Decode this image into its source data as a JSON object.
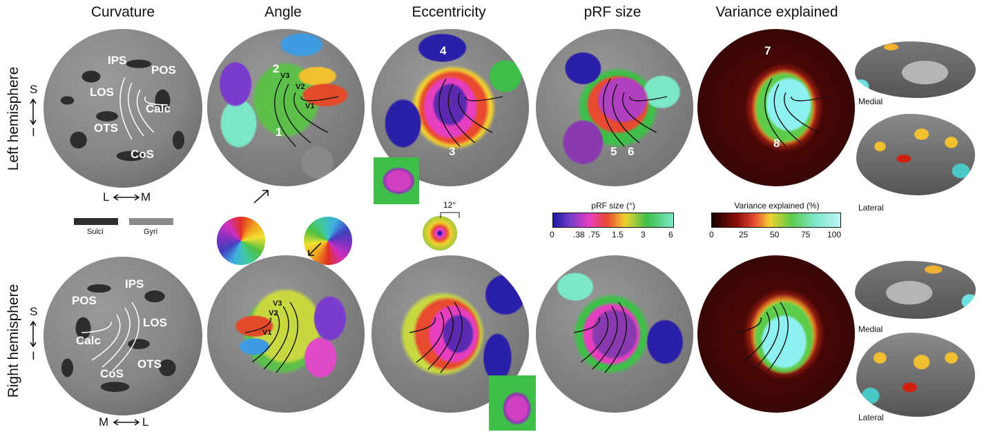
{
  "columns": {
    "curvature": "Curvature",
    "angle": "Angle",
    "eccentricity": "Eccentricity",
    "prf_size": "pRF size",
    "variance": "Variance explained"
  },
  "rows": {
    "left": "Left hemisphere",
    "right": "Right hemisphere"
  },
  "curvature_left": {
    "regions": [
      "IPS",
      "POS",
      "LOS",
      "Calc",
      "OTS",
      "CoS"
    ],
    "si": [
      "S",
      "I"
    ],
    "lm": [
      "L",
      "M"
    ]
  },
  "curvature_right": {
    "regions": [
      "IPS",
      "POS",
      "LOS",
      "Calc",
      "CoS",
      "OTS"
    ],
    "si": [
      "S",
      "I"
    ],
    "ml": [
      "M",
      "L"
    ]
  },
  "legend_curv": {
    "sulci": "Sulci",
    "gyri": "Gyri",
    "sulci_color": "#2e2e2e",
    "gyri_color": "#8a8a8a"
  },
  "visual_areas": [
    "V3",
    "V2",
    "V1"
  ],
  "numbers": [
    "1",
    "2",
    "3",
    "4",
    "5",
    "6",
    "7",
    "8"
  ],
  "ecc_legend": {
    "max": "12°"
  },
  "prf_cbar": {
    "title": "pRF size (°)",
    "ticks": [
      "0",
      ".38",
      ".75",
      "1.5",
      "3",
      "6"
    ]
  },
  "var_cbar": {
    "title": "Variance explained (%)",
    "ticks": [
      "0",
      "25",
      "50",
      "75",
      "100"
    ]
  },
  "brain_views": {
    "medial": "Medial",
    "lateral": "Lateral"
  }
}
